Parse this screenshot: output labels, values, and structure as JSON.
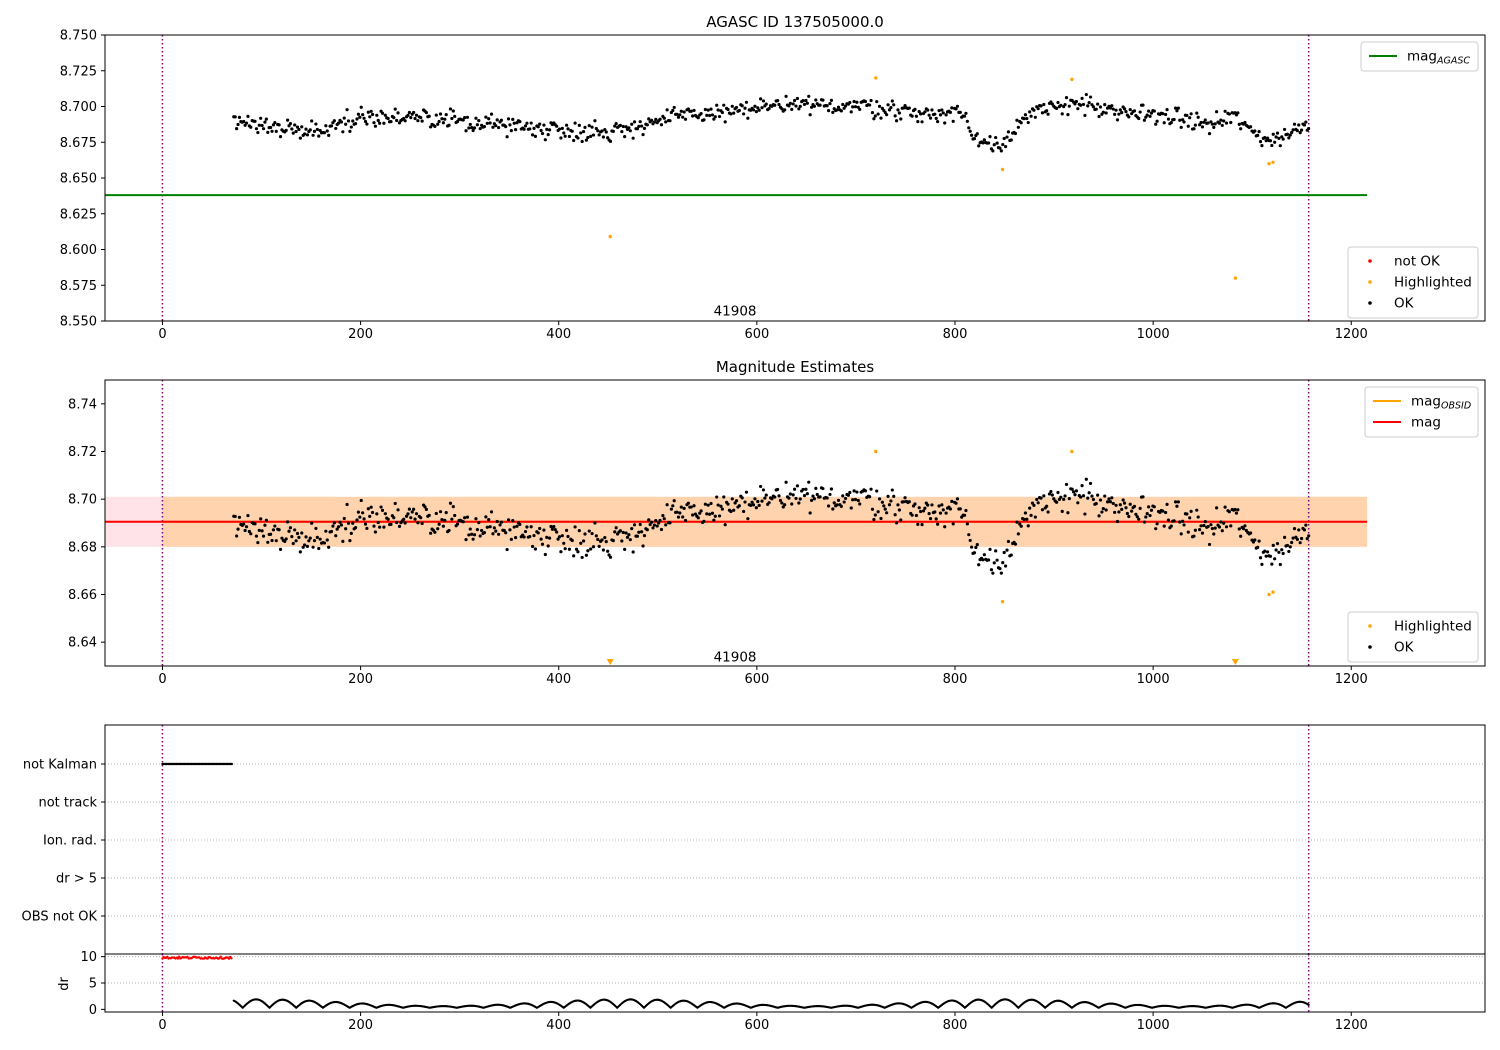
{
  "chart_data": [
    {
      "id": "panel-agasc",
      "type": "scatter",
      "title": "AGASC ID 137505000.0",
      "xlim": [
        -58,
        1335
      ],
      "ylim": [
        8.55,
        8.75
      ],
      "xticks": [
        0,
        200,
        400,
        600,
        800,
        1000,
        1200
      ],
      "yticks": [
        8.55,
        8.575,
        8.6,
        8.625,
        8.65,
        8.675,
        8.7,
        8.725,
        8.75
      ],
      "ytick_labels": [
        "8.550",
        "8.575",
        "8.600",
        "8.625",
        "8.650",
        "8.675",
        "8.700",
        "8.725",
        "8.750"
      ],
      "vlines": [
        0,
        1157
      ],
      "annotation": {
        "text": "41908",
        "x": 578,
        "y": 8.5565
      },
      "lines": [
        {
          "name": "mag",
          "subscript": "AGASC",
          "color": "#008000",
          "x": [
            -58,
            1216
          ],
          "y": [
            8.638,
            8.638
          ]
        }
      ],
      "series": [
        {
          "name": "OK",
          "color": "#000000",
          "kind": "ok",
          "x_start": 72,
          "x_end": 1157,
          "n": 760,
          "level": "agasc"
        },
        {
          "name": "Highlighted",
          "color": "#ffa500",
          "kind": "points",
          "x": [
            452,
            720,
            848,
            918,
            1083,
            1117,
            1121
          ],
          "y": [
            8.609,
            8.72,
            8.656,
            8.719,
            8.58,
            8.66,
            8.661
          ]
        },
        {
          "name": "not OK",
          "color": "#ff0000",
          "kind": "points",
          "x": [],
          "y": []
        }
      ],
      "legend_upper": [
        {
          "label": "mag",
          "subscript": "AGASC",
          "color": "#008000",
          "marker": "line"
        }
      ],
      "legend_lower": [
        {
          "label": "not OK",
          "color": "#ff0000",
          "marker": "dot"
        },
        {
          "label": "Highlighted",
          "color": "#ffa500",
          "marker": "dot"
        },
        {
          "label": "OK",
          "color": "#000000",
          "marker": "dot"
        }
      ]
    },
    {
      "id": "panel-mag",
      "type": "scatter",
      "title": "Magnitude Estimates",
      "xlim": [
        -58,
        1335
      ],
      "ylim": [
        8.63,
        8.75
      ],
      "xticks": [
        0,
        200,
        400,
        600,
        800,
        1000,
        1200
      ],
      "yticks": [
        8.64,
        8.66,
        8.68,
        8.7,
        8.72,
        8.74
      ],
      "ytick_labels": [
        "8.64",
        "8.66",
        "8.68",
        "8.70",
        "8.72",
        "8.74"
      ],
      "vlines": [
        0,
        1157
      ],
      "annotation": {
        "text": "41908",
        "x": 578,
        "y": 8.6335
      },
      "bands": [
        {
          "color": "#ffc0cb",
          "alpha": 0.45,
          "x": [
            -58,
            1216
          ],
          "y": [
            8.68,
            8.701
          ]
        },
        {
          "color": "#ffa500",
          "alpha": 0.25,
          "x": [
            0,
            1216
          ],
          "y": [
            8.68,
            8.701
          ]
        }
      ],
      "lines": [
        {
          "name": "mag",
          "subscript": "OBSID",
          "color": "#ffa500",
          "x": [
            0,
            1157
          ],
          "y": [
            8.6905,
            8.6905
          ]
        },
        {
          "name": "mag",
          "color": "#ff0000",
          "x": [
            -58,
            1216
          ],
          "y": [
            8.6905,
            8.6905
          ]
        }
      ],
      "series": [
        {
          "name": "OK",
          "color": "#000000",
          "kind": "ok",
          "x_start": 72,
          "x_end": 1157,
          "n": 760,
          "level": "mag"
        },
        {
          "name": "Highlighted",
          "color": "#ffa500",
          "kind": "points",
          "x": [
            720,
            848,
            918,
            1117,
            1121
          ],
          "y": [
            8.72,
            8.657,
            8.72,
            8.66,
            8.661
          ]
        },
        {
          "name": "Highlighted (off-scale)",
          "color": "#ffa500",
          "kind": "triangles",
          "x": [
            452,
            1083
          ],
          "y": [
            8.631,
            8.631
          ]
        }
      ],
      "legend_upper": [
        {
          "label": "mag",
          "subscript": "OBSID",
          "color": "#ffa500",
          "marker": "line"
        },
        {
          "label": "mag",
          "color": "#ff0000",
          "marker": "line"
        }
      ],
      "legend_lower": [
        {
          "label": "Highlighted",
          "color": "#ffa500",
          "marker": "dot"
        },
        {
          "label": "OK",
          "color": "#000000",
          "marker": "dot"
        }
      ]
    },
    {
      "id": "panel-flags",
      "type": "scatter",
      "xlim": [
        -58,
        1335
      ],
      "vlines": [
        0,
        1157
      ],
      "categories": [
        "not Kalman",
        "not track",
        "Ion. rad.",
        "dr > 5",
        "OBS not OK"
      ],
      "flag_series": [
        {
          "category": "not Kalman",
          "color": "#000000",
          "x_start": 0,
          "x_end": 70
        }
      ]
    },
    {
      "id": "panel-dr",
      "type": "scatter",
      "xlim": [
        -58,
        1335
      ],
      "ylim": [
        -0.5,
        10.5
      ],
      "ylabel": "dr",
      "xticks": [
        0,
        200,
        400,
        600,
        800,
        1000,
        1200
      ],
      "yticks": [
        0,
        5,
        10
      ],
      "ytick_labels": [
        "0",
        "5",
        "10"
      ],
      "vlines": [
        0,
        1157
      ],
      "series": [
        {
          "name": "dr > 5",
          "color": "#ff0000",
          "kind": "dr_high",
          "x_start": 0,
          "x_end": 70,
          "y": 9.8
        },
        {
          "name": "dr",
          "color": "#000000",
          "kind": "dr_low",
          "x_start": 72,
          "x_end": 1157
        }
      ]
    }
  ]
}
